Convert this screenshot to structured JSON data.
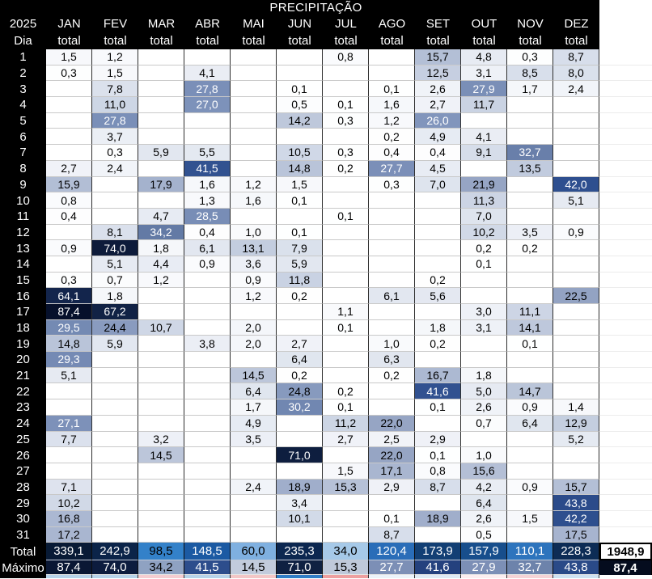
{
  "title": "PRECIPITAÇÃO",
  "year": "2025",
  "day_label": "Dia",
  "col_subheader": "total",
  "months": [
    "JAN",
    "FEV",
    "MAR",
    "ABR",
    "MAI",
    "JUN",
    "JUL",
    "AGO",
    "SET",
    "OUT",
    "NOV",
    "DEZ"
  ],
  "days": [
    {
      "day": "1",
      "values": [
        "1,5",
        "1,2",
        "",
        "",
        "",
        "",
        "0,8",
        "",
        "15,7",
        "4,8",
        "0,3",
        "8,7"
      ]
    },
    {
      "day": "2",
      "values": [
        "0,3",
        "1,5",
        "",
        "4,1",
        "",
        "",
        "",
        "",
        "12,5",
        "3,1",
        "8,5",
        "8,0"
      ]
    },
    {
      "day": "3",
      "values": [
        "",
        "7,8",
        "",
        "27,8",
        "",
        "0,1",
        "",
        "0,1",
        "2,6",
        "27,9",
        "1,7",
        "2,4"
      ]
    },
    {
      "day": "4",
      "values": [
        "",
        "11,0",
        "",
        "27,0",
        "",
        "0,5",
        "0,1",
        "1,6",
        "2,7",
        "11,7",
        "",
        ""
      ]
    },
    {
      "day": "5",
      "values": [
        "",
        "27,8",
        "",
        "",
        "",
        "14,2",
        "0,3",
        "1,2",
        "26,0",
        "",
        "",
        ""
      ]
    },
    {
      "day": "6",
      "values": [
        "",
        "3,7",
        "",
        "",
        "",
        "",
        "",
        "0,2",
        "4,9",
        "4,1",
        "",
        ""
      ]
    },
    {
      "day": "7",
      "values": [
        "",
        "0,3",
        "5,9",
        "5,5",
        "",
        "10,5",
        "0,3",
        "0,4",
        "0,4",
        "9,1",
        "32,7",
        ""
      ]
    },
    {
      "day": "8",
      "values": [
        "2,7",
        "2,4",
        "",
        "41,5",
        "",
        "14,8",
        "0,2",
        "27,7",
        "4,5",
        "",
        "13,5",
        ""
      ]
    },
    {
      "day": "9",
      "values": [
        "15,9",
        "",
        "17,9",
        "1,6",
        "1,2",
        "1,5",
        "",
        "0,3",
        "7,0",
        "21,9",
        "",
        "42,0"
      ]
    },
    {
      "day": "10",
      "values": [
        "0,8",
        "",
        "",
        "1,3",
        "1,6",
        "0,1",
        "",
        "",
        "",
        "11,3",
        "",
        "5,1"
      ]
    },
    {
      "day": "11",
      "values": [
        "0,4",
        "",
        "4,7",
        "28,5",
        "",
        "",
        "0,1",
        "",
        "",
        "7,0",
        "",
        ""
      ]
    },
    {
      "day": "12",
      "values": [
        "",
        "8,1",
        "34,2",
        "0,4",
        "1,0",
        "0,1",
        "",
        "",
        "",
        "10,2",
        "3,5",
        "0,9"
      ]
    },
    {
      "day": "13",
      "values": [
        "0,9",
        "74,0",
        "1,8",
        "6,1",
        "13,1",
        "7,9",
        "",
        "",
        "",
        "0,2",
        "0,2",
        ""
      ]
    },
    {
      "day": "14",
      "values": [
        "",
        "5,1",
        "4,4",
        "0,9",
        "3,6",
        "5,9",
        "",
        "",
        "",
        "0,1",
        "",
        ""
      ]
    },
    {
      "day": "15",
      "values": [
        "0,3",
        "0,7",
        "1,2",
        "",
        "0,9",
        "11,8",
        "",
        "",
        "0,2",
        "",
        "",
        ""
      ]
    },
    {
      "day": "16",
      "values": [
        "64,1",
        "1,8",
        "",
        "",
        "1,2",
        "0,2",
        "",
        "6,1",
        "5,6",
        "",
        "",
        "22,5"
      ]
    },
    {
      "day": "17",
      "values": [
        "87,4",
        "67,2",
        "",
        "",
        "",
        "",
        "1,1",
        "",
        "",
        "3,0",
        "11,1",
        ""
      ]
    },
    {
      "day": "18",
      "values": [
        "29,5",
        "24,4",
        "10,7",
        "",
        "2,0",
        "",
        "0,1",
        "",
        "1,8",
        "3,1",
        "14,1",
        ""
      ]
    },
    {
      "day": "19",
      "values": [
        "14,8",
        "5,9",
        "",
        "3,8",
        "2,0",
        "2,7",
        "",
        "1,0",
        "0,2",
        "",
        "0,1",
        ""
      ]
    },
    {
      "day": "20",
      "values": [
        "29,3",
        "",
        "",
        "",
        "",
        "6,4",
        "",
        "6,3",
        "",
        "",
        "",
        ""
      ]
    },
    {
      "day": "21",
      "values": [
        "5,1",
        "",
        "",
        "",
        "14,5",
        "0,2",
        "",
        "0,2",
        "16,7",
        "1,8",
        "",
        ""
      ]
    },
    {
      "day": "22",
      "values": [
        "",
        "",
        "",
        "",
        "6,4",
        "24,8",
        "0,2",
        "",
        "41,6",
        "5,0",
        "14,7",
        ""
      ]
    },
    {
      "day": "23",
      "values": [
        "",
        "",
        "",
        "",
        "1,7",
        "30,2",
        "0,1",
        "",
        "0,1",
        "2,6",
        "0,9",
        "1,4"
      ]
    },
    {
      "day": "24",
      "values": [
        "27,1",
        "",
        "",
        "",
        "4,9",
        "",
        "11,2",
        "22,0",
        "",
        "0,7",
        "6,4",
        "12,9"
      ]
    },
    {
      "day": "25",
      "values": [
        "7,7",
        "",
        "3,2",
        "",
        "3,5",
        "",
        "2,7",
        "2,5",
        "2,9",
        "",
        "",
        "5,2"
      ]
    },
    {
      "day": "26",
      "values": [
        "",
        "",
        "14,5",
        "",
        "",
        "71,0",
        "",
        "22,0",
        "0,1",
        "1,0",
        "",
        ""
      ]
    },
    {
      "day": "27",
      "values": [
        "",
        "",
        "",
        "",
        "",
        "",
        "1,5",
        "17,1",
        "0,8",
        "15,6",
        "",
        ""
      ]
    },
    {
      "day": "28",
      "values": [
        "7,1",
        "",
        "",
        "",
        "2,4",
        "18,9",
        "15,3",
        "2,9",
        "8,7",
        "4,2",
        "0,9",
        "15,7"
      ]
    },
    {
      "day": "29",
      "values": [
        "10,2",
        "",
        "",
        "",
        "",
        "3,4",
        "",
        "",
        "",
        "6,4",
        "",
        "43,8"
      ]
    },
    {
      "day": "30",
      "values": [
        "16,8",
        "",
        "",
        "",
        "",
        "10,1",
        "",
        "0,1",
        "18,9",
        "2,6",
        "1,5",
        "42,2"
      ]
    },
    {
      "day": "31",
      "values": [
        "17,2",
        "",
        "",
        "",
        "",
        "",
        "",
        "8,7",
        "",
        "0,5",
        "",
        "17,5"
      ]
    }
  ],
  "total_row": {
    "label": "Total",
    "values": [
      "339,1",
      "242,9",
      "98,5",
      "148,5",
      "60,0",
      "235,3",
      "34,0",
      "120,4",
      "173,9",
      "157,9",
      "110,1",
      "228,3"
    ],
    "colors": [
      "#081a35",
      "#0b2449",
      "#3381c9",
      "#1b5aa3",
      "#7fb0e0",
      "#0c2750",
      "#a6c9e8",
      "#2a6db8",
      "#123f74",
      "#174e8c",
      "#2d74bd",
      "#0d2c55"
    ],
    "text_colors": [
      "#ffffff",
      "#ffffff",
      "#000000",
      "#ffffff",
      "#000000",
      "#ffffff",
      "#000000",
      "#ffffff",
      "#ffffff",
      "#ffffff",
      "#ffffff",
      "#ffffff"
    ],
    "grand_total": "1948,9"
  },
  "max_row": {
    "label": "Máximo",
    "values": [
      "87,4",
      "74,0",
      "34,2",
      "41,5",
      "14,5",
      "71,0",
      "15,3",
      "27,7",
      "41,6",
      "27,9",
      "32,7",
      "43,8"
    ],
    "colors": [
      "#0a1734",
      "#0d1c3e",
      "#8fa2c2",
      "#2d4d8c",
      "#c2cbdc",
      "#0f2142",
      "#bfc9da",
      "#7c8fb6",
      "#24417e",
      "#7c8fb6",
      "#6d83ab",
      "#2a4a88"
    ],
    "text_colors": [
      "#ffffff",
      "#ffffff",
      "#000000",
      "#ffffff",
      "#000000",
      "#ffffff",
      "#000000",
      "#ffffff",
      "#ffffff",
      "#ffffff",
      "#ffffff",
      "#ffffff"
    ],
    "grand_max": "87,4",
    "grand_max_bg": "#050c1e"
  },
  "partial_row_colors": [
    "#b7d3ea",
    "#b7d3ea",
    "#f5cdd1",
    "#b7d3ea",
    "#f3c6c6",
    "#2f7dc7",
    "#ee9f9f",
    "#ecf3fa",
    "#dfeaf5",
    "#fceef0",
    "#f5d3d6",
    "#cfe2f2"
  ],
  "colors": {
    "header_bg": "#000000",
    "header_text": "#ffffff",
    "row_line": "#c9c9c9",
    "col_line": "#2f2f2f",
    "empty_cell": "#ffffff"
  },
  "color_scale": {
    "stops": [
      [
        0,
        "#ffffff"
      ],
      [
        3,
        "#eef1f7"
      ],
      [
        6,
        "#e2e7f0"
      ],
      [
        10,
        "#d2dae8"
      ],
      [
        14,
        "#bfc9dc"
      ],
      [
        18,
        "#a3b1cd"
      ],
      [
        22,
        "#96a5c4"
      ],
      [
        26,
        "#8195bc"
      ],
      [
        30,
        "#7288b2"
      ],
      [
        36,
        "#5d74a0"
      ],
      [
        42,
        "#2e4f8f"
      ],
      [
        55,
        "#1b3468"
      ],
      [
        65,
        "#122449"
      ],
      [
        75,
        "#0c1a38"
      ],
      [
        88,
        "#06102a"
      ]
    ],
    "white_text_min": 26
  }
}
